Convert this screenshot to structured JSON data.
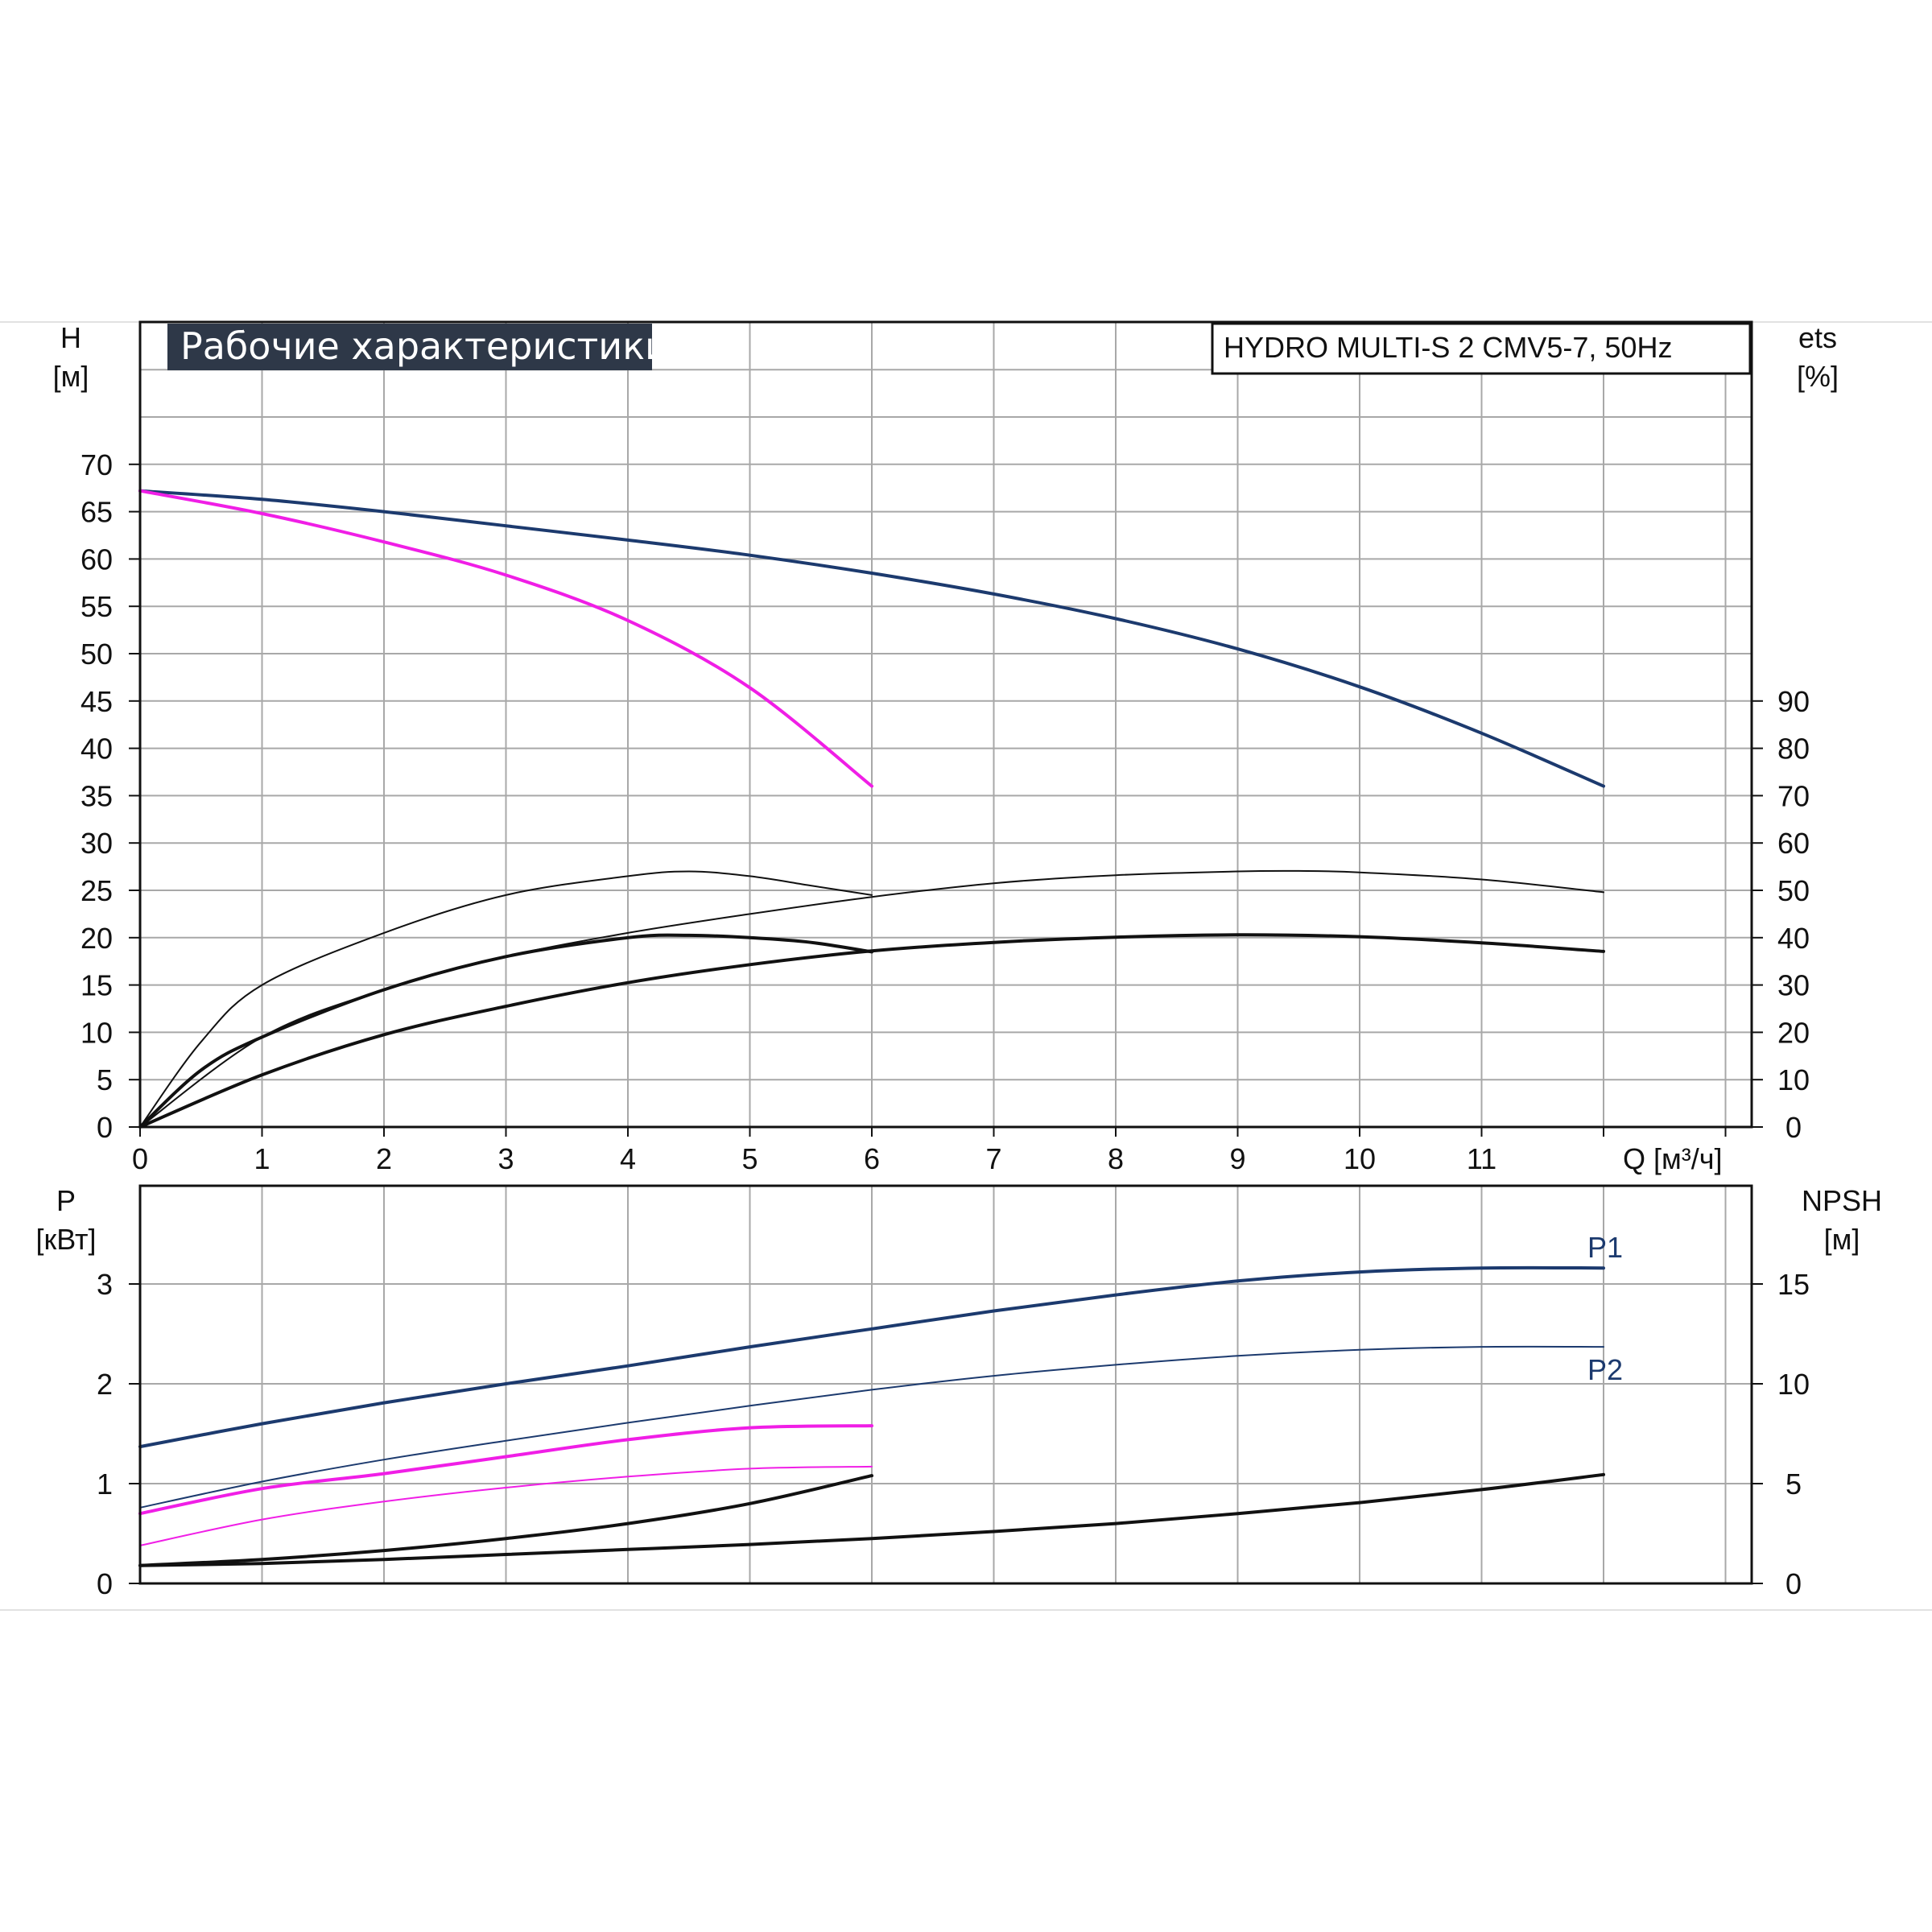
{
  "title": "Рабочие характеристики",
  "model": "HYDRO MULTI-S 2 CMV5-7, 50Hz",
  "colors": {
    "blue": "#1c3a6e",
    "magenta": "#f01ee6",
    "black": "#111111",
    "grid": "#a8a8a8",
    "title_bg": "#2e3848"
  },
  "chart_data": [
    {
      "type": "line",
      "panel": "head-efficiency",
      "x_label": "Q [м³/ч]",
      "y_left_label": [
        "H",
        "[м]"
      ],
      "y_right_label": [
        "ets",
        "[%]"
      ],
      "xlim": [
        0,
        13.2
      ],
      "ylim_left": [
        0,
        80
      ],
      "ylim_right": [
        0,
        160
      ],
      "x_ticks": [
        "0",
        "1",
        "2",
        "3",
        "4",
        "5",
        "6",
        "7",
        "8",
        "9",
        "10",
        "11"
      ],
      "y_left_ticks": [
        "0",
        "5",
        "10",
        "15",
        "20",
        "25",
        "30",
        "35",
        "40",
        "45",
        "50",
        "55",
        "60",
        "65",
        "70"
      ],
      "y_right_ticks": [
        "0",
        "10",
        "20",
        "30",
        "40",
        "50",
        "60",
        "70",
        "80",
        "90"
      ],
      "series": [
        {
          "axis": "left",
          "color": "blue",
          "width": 4,
          "x": [
            0,
            1,
            2,
            3,
            4,
            5,
            6,
            7,
            8,
            9,
            10,
            11,
            12
          ],
          "y": [
            67.2,
            66.3,
            65.0,
            63.5,
            62.0,
            60.4,
            58.5,
            56.3,
            53.7,
            50.5,
            46.5,
            41.6,
            36.0
          ]
        },
        {
          "axis": "left",
          "color": "magenta",
          "width": 4,
          "x": [
            0,
            1,
            2,
            3,
            4,
            5,
            6
          ],
          "y": [
            67.2,
            64.8,
            61.8,
            58.3,
            53.5,
            46.4,
            36.0
          ]
        },
        {
          "axis": "right",
          "color": "black",
          "width": 2,
          "x": [
            0,
            0.5,
            1,
            2,
            3,
            4,
            4.5,
            5,
            5.5,
            6
          ],
          "y": [
            0,
            18,
            30,
            41,
            49,
            53,
            54,
            53,
            51,
            49
          ]
        },
        {
          "axis": "right",
          "color": "black",
          "width": 4,
          "x": [
            0,
            0.5,
            1,
            2,
            3,
            4,
            4.5,
            5,
            5.5,
            6
          ],
          "y": [
            0,
            12,
            19,
            29,
            36,
            40,
            40.5,
            40,
            39,
            37
          ]
        },
        {
          "axis": "right",
          "color": "black",
          "width": 2,
          "x": [
            0,
            1,
            2,
            3,
            4,
            5,
            6,
            7,
            8,
            9,
            9.5,
            10,
            11,
            12
          ],
          "y": [
            0,
            19,
            29,
            36,
            41,
            45,
            48.6,
            51.5,
            53.2,
            54,
            54.1,
            53.8,
            52.3,
            49.6
          ]
        },
        {
          "axis": "right",
          "color": "black",
          "width": 4,
          "x": [
            0,
            1,
            2,
            3,
            4,
            5,
            6,
            7,
            8,
            9,
            10,
            11,
            12
          ],
          "y": [
            0,
            11,
            19.5,
            25.5,
            30.5,
            34.3,
            37.2,
            39.0,
            40.1,
            40.6,
            40.2,
            38.9,
            37.1
          ]
        }
      ]
    },
    {
      "type": "line",
      "panel": "power-npsh",
      "y_left_label": [
        "P",
        "[кВт]"
      ],
      "y_right_label": [
        "NPSH",
        "[м]"
      ],
      "xlim": [
        0,
        13.2
      ],
      "ylim_left": [
        0,
        3.7
      ],
      "ylim_right": [
        0,
        18.5
      ],
      "y_left_ticks": [
        "0",
        "1",
        "2",
        "3"
      ],
      "y_right_ticks": [
        "0",
        "5",
        "10",
        "15"
      ],
      "series": [
        {
          "axis": "left",
          "color": "blue",
          "width": 4,
          "name": "P1",
          "x": [
            0,
            1,
            2,
            3,
            4,
            5,
            6,
            7,
            8,
            9,
            10,
            11,
            12
          ],
          "y": [
            1.37,
            1.6,
            1.81,
            2.0,
            2.18,
            2.37,
            2.55,
            2.73,
            2.89,
            3.03,
            3.12,
            3.16,
            3.16
          ]
        },
        {
          "axis": "left",
          "color": "blue",
          "width": 2,
          "name": "P2",
          "x": [
            0,
            1,
            2,
            3,
            4,
            5,
            6,
            7,
            8,
            9,
            10,
            11,
            12
          ],
          "y": [
            0.76,
            1.02,
            1.24,
            1.43,
            1.61,
            1.78,
            1.94,
            2.08,
            2.19,
            2.28,
            2.34,
            2.37,
            2.37
          ]
        },
        {
          "axis": "left",
          "color": "magenta",
          "width": 4,
          "x": [
            0,
            1,
            2,
            3,
            4,
            5,
            6
          ],
          "y": [
            0.7,
            0.95,
            1.1,
            1.27,
            1.44,
            1.56,
            1.58
          ]
        },
        {
          "axis": "left",
          "color": "magenta",
          "width": 2,
          "x": [
            0,
            1,
            2,
            3,
            4,
            5,
            6
          ],
          "y": [
            0.38,
            0.64,
            0.82,
            0.96,
            1.07,
            1.15,
            1.17
          ]
        },
        {
          "axis": "left",
          "color": "black",
          "width": 4,
          "x": [
            0,
            1,
            2,
            3,
            4,
            5,
            6
          ],
          "y": [
            0.18,
            0.24,
            0.33,
            0.45,
            0.6,
            0.8,
            1.08
          ]
        },
        {
          "axis": "left",
          "color": "black",
          "width": 4,
          "x": [
            0,
            1,
            2,
            3,
            4,
            5,
            6,
            7,
            8,
            9,
            10,
            11,
            12
          ],
          "y": [
            0.18,
            0.2,
            0.24,
            0.29,
            0.34,
            0.39,
            0.45,
            0.52,
            0.6,
            0.7,
            0.81,
            0.94,
            1.09
          ]
        }
      ]
    }
  ]
}
